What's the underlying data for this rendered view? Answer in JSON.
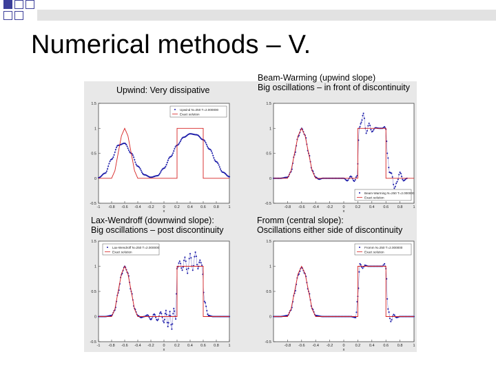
{
  "slide": {
    "title": "Numerical methods – V."
  },
  "colors": {
    "decor": "#3c3f9a",
    "exact": "#d62020",
    "numeric": "#1a1aa8",
    "panel_bg": "#e8e8e8"
  },
  "chart_data": [
    {
      "type": "line",
      "title_lines": [
        "Upwind: Very dissipative"
      ],
      "legend": [
        "Upwind N=250 T=2.000000",
        "Exact solution"
      ],
      "legend_position": "top-right",
      "xlim": [
        -1,
        1
      ],
      "ylim": [
        -0.5,
        1.5
      ],
      "x_ticks": [
        "-1",
        "-0.8",
        "-0.6",
        "-0.4",
        "-0.2",
        "0",
        "0.2",
        "0.4",
        "0.6",
        "0.8",
        "1"
      ],
      "y_ticks": [
        "-0.5",
        "0",
        "0.5",
        "1",
        "1.5"
      ],
      "xlabel": "x",
      "series": [
        {
          "name": "Upwind N=250 T=2.000000",
          "style": "dots",
          "x": [
            -1,
            -0.9,
            -0.8,
            -0.7,
            -0.6,
            -0.5,
            -0.4,
            -0.3,
            -0.2,
            -0.1,
            0,
            0.1,
            0.2,
            0.3,
            0.4,
            0.5,
            0.6,
            0.7,
            0.8,
            0.9,
            1
          ],
          "y": [
            0.01,
            0.1,
            0.38,
            0.66,
            0.7,
            0.5,
            0.24,
            0.07,
            0.02,
            0.05,
            0.2,
            0.43,
            0.66,
            0.82,
            0.89,
            0.87,
            0.77,
            0.58,
            0.33,
            0.12,
            0.03
          ]
        },
        {
          "name": "Exact solution",
          "style": "line",
          "x": [
            -1,
            -0.8,
            -0.75,
            -0.7,
            -0.65,
            -0.6,
            -0.55,
            -0.5,
            -0.45,
            -0.4,
            -0.2,
            0.2,
            0.2,
            0.6,
            0.6,
            1
          ],
          "y": [
            0,
            0,
            0.15,
            0.5,
            0.85,
            1,
            0.85,
            0.5,
            0.15,
            0,
            0,
            0,
            1,
            1,
            0,
            0
          ]
        }
      ]
    },
    {
      "type": "line",
      "title_lines": [
        "Beam-Warming (upwind slope)",
        "Big oscillations – in front of discontinuity"
      ],
      "legend": [
        "Beam-Warming N=250 T=2.000000",
        "Exact solution"
      ],
      "legend_position": "bottom-right",
      "xlim": [
        -1,
        1
      ],
      "ylim": [
        -0.5,
        1.5
      ],
      "x_ticks": [
        "-0.8",
        "-0.6",
        "-0.4",
        "-0.2",
        "0",
        "0.2",
        "0.4",
        "0.6",
        "0.8",
        "1"
      ],
      "y_ticks": [
        "-0.5",
        "0",
        "0.5",
        "1",
        "1.5"
      ],
      "xlabel": "x",
      "series": [
        {
          "name": "Beam-Warming N=250 T=2.000000",
          "style": "dots",
          "x": [
            -1,
            -0.9,
            -0.8,
            -0.75,
            -0.7,
            -0.65,
            -0.6,
            -0.55,
            -0.5,
            -0.45,
            -0.4,
            -0.35,
            -0.3,
            -0.2,
            -0.1,
            0,
            0.05,
            0.1,
            0.15,
            0.19,
            0.22,
            0.25,
            0.28,
            0.32,
            0.36,
            0.4,
            0.45,
            0.5,
            0.55,
            0.58,
            0.6,
            0.62,
            0.65,
            0.68,
            0.72,
            0.76,
            0.8,
            0.85,
            0.9
          ],
          "y": [
            0.0,
            0.0,
            0.02,
            0.13,
            0.47,
            0.83,
            1.0,
            0.86,
            0.5,
            0.16,
            0.02,
            -0.02,
            0.0,
            0.0,
            0.0,
            0.0,
            -0.05,
            0.04,
            -0.06,
            0.05,
            1.0,
            1.12,
            1.3,
            0.9,
            1.1,
            0.93,
            1.01,
            1.0,
            1.0,
            1.03,
            0.98,
            0.5,
            0.12,
            0.1,
            -0.2,
            -0.07,
            0.12,
            -0.05,
            0.0
          ]
        },
        {
          "name": "Exact solution",
          "style": "line",
          "x": [
            -1,
            -0.8,
            -0.75,
            -0.7,
            -0.65,
            -0.6,
            -0.55,
            -0.5,
            -0.45,
            -0.4,
            -0.2,
            0.2,
            0.2,
            0.6,
            0.6,
            1
          ],
          "y": [
            0,
            0,
            0.15,
            0.5,
            0.85,
            1,
            0.85,
            0.5,
            0.15,
            0,
            0,
            0,
            1,
            1,
            0,
            0
          ]
        }
      ]
    },
    {
      "type": "line",
      "title_lines": [
        "Lax-Wendroff (downwind slope):",
        "Big oscillations – post discontinuity"
      ],
      "legend": [
        "Lax-Wendroff N=250 T=2.000000",
        "Exact solution"
      ],
      "legend_position": "top-left",
      "xlim": [
        -1,
        1
      ],
      "ylim": [
        -0.5,
        1.5
      ],
      "x_ticks": [
        "-1",
        "-0.8",
        "-0.6",
        "-0.4",
        "-0.2",
        "0",
        "0.2",
        "0.4",
        "0.6",
        "0.8",
        "1"
      ],
      "y_ticks": [
        "-0.5",
        "0",
        "0.5",
        "1",
        "1.5"
      ],
      "xlabel": "x",
      "series": [
        {
          "name": "Lax-Wendroff N=250 T=2.000000",
          "style": "dots",
          "x": [
            -1,
            -0.9,
            -0.8,
            -0.75,
            -0.7,
            -0.65,
            -0.6,
            -0.55,
            -0.5,
            -0.45,
            -0.4,
            -0.35,
            -0.3,
            -0.25,
            -0.2,
            -0.15,
            -0.1,
            -0.05,
            0,
            0.03,
            0.06,
            0.09,
            0.12,
            0.15,
            0.18,
            0.2,
            0.24,
            0.28,
            0.32,
            0.36,
            0.4,
            0.44,
            0.48,
            0.52,
            0.55,
            0.58,
            0.62,
            0.68,
            0.75,
            0.85,
            1
          ],
          "y": [
            0.0,
            0.0,
            0.02,
            0.13,
            0.47,
            0.83,
            1.0,
            0.86,
            0.5,
            0.16,
            0.02,
            -0.02,
            0.0,
            0.03,
            -0.06,
            0.05,
            -0.08,
            0.09,
            -0.12,
            0.12,
            -0.2,
            0.1,
            -0.25,
            0.16,
            -0.05,
            0.95,
            1.1,
            0.92,
            1.18,
            0.86,
            1.25,
            0.92,
            1.28,
            0.95,
            1.12,
            1.02,
            0.3,
            0.02,
            0.0,
            0.0,
            0.0
          ]
        },
        {
          "name": "Exact solution",
          "style": "line",
          "x": [
            -1,
            -0.8,
            -0.75,
            -0.7,
            -0.65,
            -0.6,
            -0.55,
            -0.5,
            -0.45,
            -0.4,
            -0.2,
            0.2,
            0.2,
            0.6,
            0.6,
            1
          ],
          "y": [
            0,
            0,
            0.15,
            0.5,
            0.85,
            1,
            0.85,
            0.5,
            0.15,
            0,
            0,
            0,
            1,
            1,
            0,
            0
          ]
        }
      ]
    },
    {
      "type": "line",
      "title_lines": [
        "Fromm (central slope):",
        "Oscillations either side of discontinuity"
      ],
      "legend": [
        "Fromm N=250 T=2.000000",
        "Exact solution"
      ],
      "legend_position": "top-right",
      "xlim": [
        -1,
        1
      ],
      "ylim": [
        -0.5,
        1.5
      ],
      "x_ticks": [
        "-0.8",
        "-0.6",
        "-0.4",
        "-0.2",
        "0",
        "0.2",
        "0.4",
        "0.6",
        "0.8",
        "1"
      ],
      "y_ticks": [
        "-0.5",
        "0",
        "0.5",
        "1",
        "1.5"
      ],
      "xlabel": "x",
      "series": [
        {
          "name": "Fromm N=250 T=2.000000",
          "style": "dots",
          "x": [
            -1,
            -0.9,
            -0.8,
            -0.75,
            -0.7,
            -0.65,
            -0.6,
            -0.55,
            -0.5,
            -0.45,
            -0.4,
            -0.3,
            -0.2,
            -0.1,
            0,
            0.1,
            0.17,
            0.2,
            0.23,
            0.27,
            0.3,
            0.35,
            0.4,
            0.45,
            0.5,
            0.55,
            0.58,
            0.6,
            0.63,
            0.67,
            0.71,
            0.75,
            0.8,
            0.9,
            1
          ],
          "y": [
            0.0,
            0.0,
            0.02,
            0.13,
            0.46,
            0.82,
            0.98,
            0.85,
            0.5,
            0.16,
            0.02,
            0.0,
            0.0,
            0.0,
            0.0,
            0.0,
            -0.02,
            0.4,
            1.05,
            0.96,
            1.02,
            1.0,
            1.0,
            1.0,
            1.0,
            1.0,
            1.05,
            0.95,
            0.15,
            -0.1,
            0.04,
            -0.02,
            0.0,
            0.0,
            0.0
          ]
        },
        {
          "name": "Exact solution",
          "style": "line",
          "x": [
            -1,
            -0.8,
            -0.75,
            -0.7,
            -0.65,
            -0.6,
            -0.55,
            -0.5,
            -0.45,
            -0.4,
            -0.2,
            0.2,
            0.2,
            0.6,
            0.6,
            1
          ],
          "y": [
            0,
            0,
            0.15,
            0.5,
            0.85,
            1,
            0.85,
            0.5,
            0.15,
            0,
            0,
            0,
            1,
            1,
            0,
            0
          ]
        }
      ]
    }
  ]
}
